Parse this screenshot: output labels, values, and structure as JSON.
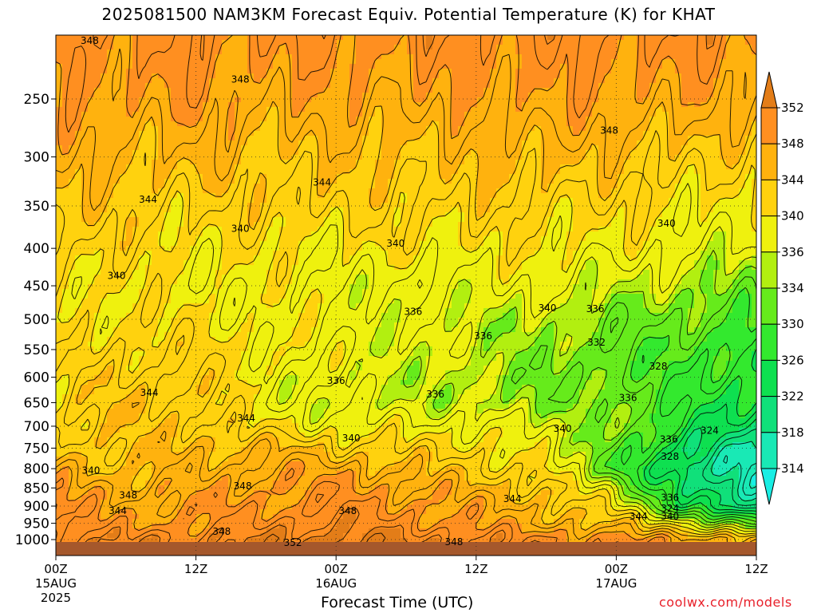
{
  "title": "2025081500 NAM3KM Forecast Equiv. Potential Temperature (K) for KHAT",
  "credit": "coolwx.com/models",
  "chart_data": {
    "type": "heatmap",
    "title": "2025081500 NAM3KM Forecast Equiv. Potential Temperature (K) for KHAT",
    "xlabel": "Forecast Time (UTC)",
    "ylabel": "",
    "x_ticks": [
      {
        "hour": 0,
        "label": "00Z",
        "sub1": "15AUG",
        "sub2": "2025"
      },
      {
        "hour": 12,
        "label": "12Z",
        "sub1": "",
        "sub2": ""
      },
      {
        "hour": 24,
        "label": "00Z",
        "sub1": "16AUG",
        "sub2": ""
      },
      {
        "hour": 36,
        "label": "12Z",
        "sub1": "",
        "sub2": ""
      },
      {
        "hour": 48,
        "label": "00Z",
        "sub1": "17AUG",
        "sub2": ""
      },
      {
        "hour": 60,
        "label": "12Z",
        "sub1": "",
        "sub2": ""
      }
    ],
    "xlim_hours": [
      0,
      60
    ],
    "y_axis": "pressure (hPa), log scale, inverted",
    "y_ticks": [
      250,
      300,
      350,
      400,
      450,
      500,
      550,
      600,
      650,
      700,
      750,
      800,
      850,
      900,
      950,
      1000
    ],
    "ylim_hpa": [
      1025,
      200
    ],
    "grid": true,
    "colorbar": {
      "levels": [
        314,
        318,
        322,
        326,
        330,
        334,
        336,
        340,
        344,
        348,
        352
      ],
      "colors": [
        "#19eee4",
        "#19e9b5",
        "#10e07a",
        "#0ee050",
        "#33e92e",
        "#66eb1b",
        "#b2ef10",
        "#eff10e",
        "#ffd20e",
        "#ffb20e",
        "#ff8f20",
        "#e37d18"
      ]
    },
    "data_hours": [
      0,
      6,
      12,
      18,
      24,
      30,
      36,
      42,
      48,
      54,
      60
    ],
    "data_levels_hpa": [
      1000,
      950,
      900,
      850,
      800,
      750,
      700,
      650,
      600,
      550,
      500,
      450,
      400,
      350,
      300,
      250,
      200
    ],
    "theta_e": [
      [
        352,
        351,
        351,
        352,
        353,
        352,
        351,
        350,
        349,
        348,
        346
      ],
      [
        350,
        348,
        349,
        350,
        351,
        350,
        348,
        346,
        344,
        338,
        330
      ],
      [
        349,
        347,
        348,
        349,
        350,
        349,
        347,
        345,
        340,
        326,
        318
      ],
      [
        348,
        346,
        347,
        348,
        349,
        347,
        345,
        343,
        336,
        322,
        316
      ],
      [
        346,
        344,
        346,
        347,
        347,
        345,
        343,
        340,
        330,
        320,
        316
      ],
      [
        344,
        343,
        345,
        345,
        343,
        342,
        341,
        338,
        332,
        322,
        318
      ],
      [
        342,
        343,
        344,
        340,
        339,
        339,
        339,
        337,
        334,
        326,
        322
      ],
      [
        341,
        344,
        343,
        338,
        337,
        336,
        335,
        334,
        333,
        328,
        324
      ],
      [
        341,
        343,
        342,
        339,
        337,
        336,
        335,
        333,
        332,
        329,
        326
      ],
      [
        340,
        342,
        341,
        340,
        338,
        337,
        336,
        334,
        332,
        330,
        327
      ],
      [
        340,
        341,
        340,
        339,
        338,
        337,
        336,
        335,
        333,
        332,
        330
      ],
      [
        341,
        340,
        339,
        339,
        339,
        336,
        338,
        338,
        336,
        335,
        333
      ],
      [
        342,
        341,
        340,
        340,
        339,
        340,
        340,
        340,
        339,
        338,
        337
      ],
      [
        344,
        343,
        342,
        342,
        342,
        342,
        342,
        342,
        341,
        340,
        339
      ],
      [
        346,
        345,
        345,
        344,
        344,
        344,
        344,
        345,
        344,
        343,
        342
      ],
      [
        348,
        348,
        348,
        347,
        347,
        347,
        347,
        348,
        348,
        347,
        346
      ],
      [
        350,
        350,
        350,
        350,
        350,
        350,
        350,
        350,
        350,
        350,
        350
      ]
    ],
    "contour_labels": [
      {
        "hour": 2.9,
        "p": 208,
        "text": "348"
      },
      {
        "hour": 15.8,
        "p": 235,
        "text": "348"
      },
      {
        "hour": 47.4,
        "p": 276,
        "text": "348"
      },
      {
        "hour": 22.8,
        "p": 325,
        "text": "344"
      },
      {
        "hour": 7.9,
        "p": 343,
        "text": "344"
      },
      {
        "hour": 15.8,
        "p": 376,
        "text": "340"
      },
      {
        "hour": 29.1,
        "p": 394,
        "text": "340"
      },
      {
        "hour": 52.3,
        "p": 370,
        "text": "340"
      },
      {
        "hour": 5.2,
        "p": 436,
        "text": "340"
      },
      {
        "hour": 30.6,
        "p": 488,
        "text": "336"
      },
      {
        "hour": 42.1,
        "p": 483,
        "text": "340"
      },
      {
        "hour": 46.2,
        "p": 484,
        "text": "336"
      },
      {
        "hour": 36.6,
        "p": 527,
        "text": "336"
      },
      {
        "hour": 46.3,
        "p": 538,
        "text": "332"
      },
      {
        "hour": 51.6,
        "p": 580,
        "text": "328"
      },
      {
        "hour": 24.0,
        "p": 607,
        "text": "336"
      },
      {
        "hour": 32.5,
        "p": 633,
        "text": "336"
      },
      {
        "hour": 49.0,
        "p": 640,
        "text": "336"
      },
      {
        "hour": 8.0,
        "p": 630,
        "text": "344"
      },
      {
        "hour": 16.3,
        "p": 683,
        "text": "344"
      },
      {
        "hour": 43.4,
        "p": 705,
        "text": "340"
      },
      {
        "hour": 56.0,
        "p": 710,
        "text": "324"
      },
      {
        "hour": 25.3,
        "p": 727,
        "text": "340"
      },
      {
        "hour": 52.5,
        "p": 730,
        "text": "336"
      },
      {
        "hour": 52.6,
        "p": 770,
        "text": "328"
      },
      {
        "hour": 3.0,
        "p": 805,
        "text": "340"
      },
      {
        "hour": 16.0,
        "p": 845,
        "text": "348"
      },
      {
        "hour": 6.2,
        "p": 870,
        "text": "348"
      },
      {
        "hour": 39.1,
        "p": 880,
        "text": "344"
      },
      {
        "hour": 52.6,
        "p": 877,
        "text": "336"
      },
      {
        "hour": 5.3,
        "p": 913,
        "text": "344"
      },
      {
        "hour": 25.0,
        "p": 913,
        "text": "348"
      },
      {
        "hour": 52.6,
        "p": 907,
        "text": "324"
      },
      {
        "hour": 49.9,
        "p": 930,
        "text": "344"
      },
      {
        "hour": 52.6,
        "p": 930,
        "text": "340"
      },
      {
        "hour": 14.2,
        "p": 975,
        "text": "348"
      },
      {
        "hour": 20.3,
        "p": 1010,
        "text": "352"
      },
      {
        "hour": 34.1,
        "p": 1007,
        "text": "348"
      }
    ]
  }
}
